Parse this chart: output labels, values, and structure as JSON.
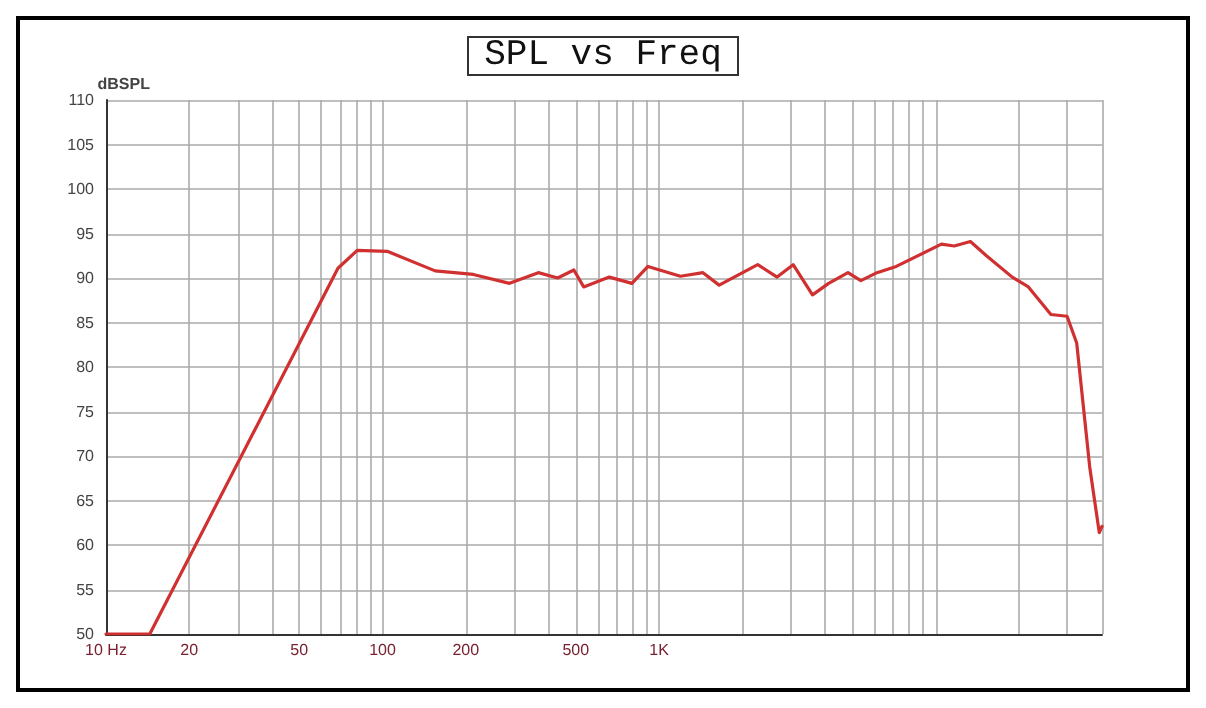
{
  "chart_data": {
    "type": "line",
    "title": "SPL vs Freq",
    "ylabel": "dBSPL",
    "x": [
      10,
      14.4,
      69,
      81,
      104,
      155,
      213,
      288,
      366,
      430,
      492,
      534,
      661,
      798,
      912,
      1195,
      1442,
      1650,
      2275,
      2673,
      3056,
      3590,
      4106,
      4823,
      5370,
      6140,
      7210,
      10500,
      11690,
      13370,
      15280,
      18940,
      21670,
      26140,
      29900,
      32400,
      36100,
      39100,
      40000
    ],
    "series": [
      {
        "color": "#d03030",
        "values": [
          50,
          50,
          91.1,
          93.1,
          93,
          90.8,
          90.4,
          89.4,
          90.6,
          90.0,
          90.9,
          89.0,
          90.1,
          89.4,
          91.3,
          90.2,
          90.6,
          89.2,
          91.5,
          90.1,
          91.5,
          88.1,
          89.4,
          90.6,
          89.7,
          90.6,
          91.3,
          93.8,
          93.6,
          94.1,
          92.5,
          90.1,
          89.0,
          85.9,
          85.7,
          82.7,
          68.8,
          61.4,
          62.1
        ]
      }
    ],
    "log": "x",
    "xlim": [
      10,
      40000
    ],
    "ylim": [
      50,
      110
    ],
    "xticks": [
      {
        "value": 10,
        "label": "10 Hz"
      },
      20,
      {
        "value": 30,
        "label": null
      },
      {
        "value": 40,
        "label": null
      },
      50,
      {
        "value": 60,
        "label": null
      },
      {
        "value": 70,
        "label": null
      },
      {
        "value": 80,
        "label": null
      },
      {
        "value": 90,
        "label": null
      },
      100,
      200,
      {
        "value": 300,
        "label": null
      },
      {
        "value": 400,
        "label": null
      },
      500,
      {
        "value": 600,
        "label": null
      },
      {
        "value": 700,
        "label": null
      },
      {
        "value": 800,
        "label": null
      },
      {
        "value": 900,
        "label": null
      },
      {
        "value": 1000,
        "label": "1K"
      },
      {
        "value": 2000,
        "label": null
      },
      {
        "value": 3000,
        "label": null
      },
      {
        "value": 4000,
        "label": null
      },
      {
        "value": 5000,
        "label": null
      },
      {
        "value": 6000,
        "label": null
      },
      {
        "value": 7000,
        "label": null
      },
      {
        "value": 8000,
        "label": null
      },
      {
        "value": 9000,
        "label": null
      },
      {
        "value": 10000,
        "label": null
      },
      {
        "value": 20000,
        "label": null
      },
      {
        "value": 30000,
        "label": null
      },
      {
        "value": 40000,
        "label": null
      }
    ],
    "yticks": [
      50,
      55,
      60,
      65,
      70,
      75,
      80,
      85,
      90,
      95,
      100,
      105,
      110
    ],
    "grid": true,
    "marker": "none",
    "line_style": "solid"
  }
}
